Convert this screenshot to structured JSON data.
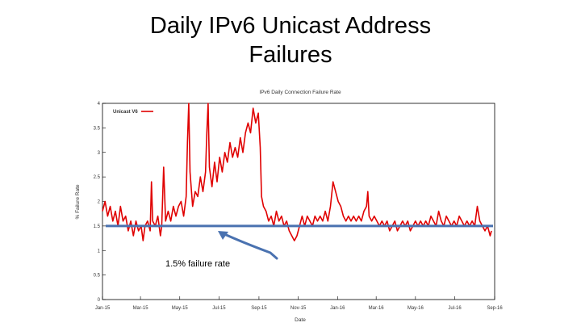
{
  "slide": {
    "title_line1": "Daily IPv6 Unicast Address",
    "title_line2": "Failures"
  },
  "colors": {
    "series": "#e00000",
    "reference_line": "#4a72b0",
    "annotation_arrow": "#4a72b0",
    "axis": "#000000"
  },
  "chart_data": {
    "type": "line",
    "title": "IPv6 Daily Connection Failure Rate",
    "xlabel": "Date",
    "ylabel": "% Failure Rate",
    "xlim": [
      "2015-01-01",
      "2016-09-01"
    ],
    "ylim": [
      0,
      4
    ],
    "y_ticks": [
      0,
      0.5,
      1,
      1.5,
      2,
      2.5,
      3,
      3.5,
      4
    ],
    "x_ticks": [
      {
        "date": "2015-01-01",
        "label": "Jan-15"
      },
      {
        "date": "2015-03-01",
        "label": "Mar-15"
      },
      {
        "date": "2015-05-01",
        "label": "May-15"
      },
      {
        "date": "2015-07-01",
        "label": "Jul-15"
      },
      {
        "date": "2015-09-01",
        "label": "Sep-15"
      },
      {
        "date": "2015-11-01",
        "label": "Nov-15"
      },
      {
        "date": "2016-01-01",
        "label": "Jan-16"
      },
      {
        "date": "2016-03-01",
        "label": "Mar-16"
      },
      {
        "date": "2016-05-01",
        "label": "May-16"
      },
      {
        "date": "2016-07-01",
        "label": "Jul-16"
      },
      {
        "date": "2016-09-01",
        "label": "Sep-16"
      }
    ],
    "legend": {
      "placement": "top-left",
      "entries": [
        "Unicast V6"
      ]
    },
    "grid": false,
    "series": [
      {
        "name": "Unicast V6",
        "points": [
          [
            "2015-01-01",
            1.8
          ],
          [
            "2015-01-05",
            2.0
          ],
          [
            "2015-01-09",
            1.7
          ],
          [
            "2015-01-13",
            1.9
          ],
          [
            "2015-01-17",
            1.6
          ],
          [
            "2015-01-21",
            1.8
          ],
          [
            "2015-01-25",
            1.5
          ],
          [
            "2015-01-29",
            1.9
          ],
          [
            "2015-02-02",
            1.6
          ],
          [
            "2015-02-06",
            1.7
          ],
          [
            "2015-02-10",
            1.4
          ],
          [
            "2015-02-14",
            1.6
          ],
          [
            "2015-02-18",
            1.3
          ],
          [
            "2015-02-22",
            1.6
          ],
          [
            "2015-02-26",
            1.4
          ],
          [
            "2015-03-02",
            1.5
          ],
          [
            "2015-03-05",
            1.2
          ],
          [
            "2015-03-08",
            1.5
          ],
          [
            "2015-03-12",
            1.6
          ],
          [
            "2015-03-16",
            1.4
          ],
          [
            "2015-03-18",
            2.4
          ],
          [
            "2015-03-20",
            1.6
          ],
          [
            "2015-03-24",
            1.5
          ],
          [
            "2015-03-28",
            1.7
          ],
          [
            "2015-04-01",
            1.3
          ],
          [
            "2015-04-03",
            1.5
          ],
          [
            "2015-04-06",
            2.7
          ],
          [
            "2015-04-09",
            1.6
          ],
          [
            "2015-04-13",
            1.8
          ],
          [
            "2015-04-17",
            1.6
          ],
          [
            "2015-04-21",
            1.9
          ],
          [
            "2015-04-25",
            1.7
          ],
          [
            "2015-04-29",
            1.9
          ],
          [
            "2015-05-03",
            2.0
          ],
          [
            "2015-05-07",
            1.7
          ],
          [
            "2015-05-11",
            2.1
          ],
          [
            "2015-05-13",
            3.2
          ],
          [
            "2015-05-15",
            4.0
          ],
          [
            "2015-05-17",
            2.6
          ],
          [
            "2015-05-21",
            1.9
          ],
          [
            "2015-05-25",
            2.2
          ],
          [
            "2015-05-29",
            2.1
          ],
          [
            "2015-06-02",
            2.5
          ],
          [
            "2015-06-06",
            2.2
          ],
          [
            "2015-06-10",
            2.6
          ],
          [
            "2015-06-12",
            3.4
          ],
          [
            "2015-06-14",
            4.0
          ],
          [
            "2015-06-16",
            2.7
          ],
          [
            "2015-06-20",
            2.3
          ],
          [
            "2015-06-24",
            2.8
          ],
          [
            "2015-06-28",
            2.4
          ],
          [
            "2015-07-02",
            2.9
          ],
          [
            "2015-07-06",
            2.6
          ],
          [
            "2015-07-10",
            3.0
          ],
          [
            "2015-07-14",
            2.8
          ],
          [
            "2015-07-18",
            3.2
          ],
          [
            "2015-07-22",
            2.9
          ],
          [
            "2015-07-26",
            3.1
          ],
          [
            "2015-07-30",
            2.9
          ],
          [
            "2015-08-03",
            3.3
          ],
          [
            "2015-08-07",
            3.0
          ],
          [
            "2015-08-11",
            3.4
          ],
          [
            "2015-08-15",
            3.6
          ],
          [
            "2015-08-19",
            3.4
          ],
          [
            "2015-08-23",
            3.9
          ],
          [
            "2015-08-27",
            3.6
          ],
          [
            "2015-08-31",
            3.8
          ],
          [
            "2015-09-03",
            3.1
          ],
          [
            "2015-09-05",
            2.1
          ],
          [
            "2015-09-08",
            1.9
          ],
          [
            "2015-09-12",
            1.8
          ],
          [
            "2015-09-16",
            1.6
          ],
          [
            "2015-09-20",
            1.7
          ],
          [
            "2015-09-24",
            1.5
          ],
          [
            "2015-09-28",
            1.8
          ],
          [
            "2015-10-02",
            1.6
          ],
          [
            "2015-10-06",
            1.7
          ],
          [
            "2015-10-10",
            1.5
          ],
          [
            "2015-10-14",
            1.6
          ],
          [
            "2015-10-18",
            1.4
          ],
          [
            "2015-10-22",
            1.3
          ],
          [
            "2015-10-26",
            1.2
          ],
          [
            "2015-10-30",
            1.3
          ],
          [
            "2015-11-03",
            1.5
          ],
          [
            "2015-11-07",
            1.7
          ],
          [
            "2015-11-11",
            1.5
          ],
          [
            "2015-11-15",
            1.7
          ],
          [
            "2015-11-19",
            1.6
          ],
          [
            "2015-11-23",
            1.5
          ],
          [
            "2015-11-27",
            1.7
          ],
          [
            "2015-12-01",
            1.6
          ],
          [
            "2015-12-05",
            1.7
          ],
          [
            "2015-12-09",
            1.6
          ],
          [
            "2015-12-13",
            1.8
          ],
          [
            "2015-12-17",
            1.6
          ],
          [
            "2015-12-21",
            1.9
          ],
          [
            "2015-12-25",
            2.4
          ],
          [
            "2015-12-29",
            2.2
          ],
          [
            "2016-01-02",
            2.0
          ],
          [
            "2016-01-06",
            1.9
          ],
          [
            "2016-01-10",
            1.7
          ],
          [
            "2016-01-14",
            1.6
          ],
          [
            "2016-01-18",
            1.7
          ],
          [
            "2016-01-22",
            1.6
          ],
          [
            "2016-01-26",
            1.7
          ],
          [
            "2016-01-30",
            1.6
          ],
          [
            "2016-02-03",
            1.7
          ],
          [
            "2016-02-07",
            1.6
          ],
          [
            "2016-02-11",
            1.8
          ],
          [
            "2016-02-15",
            1.9
          ],
          [
            "2016-02-17",
            2.2
          ],
          [
            "2016-02-19",
            1.7
          ],
          [
            "2016-02-23",
            1.6
          ],
          [
            "2016-02-27",
            1.7
          ],
          [
            "2016-03-02",
            1.6
          ],
          [
            "2016-03-06",
            1.5
          ],
          [
            "2016-03-10",
            1.6
          ],
          [
            "2016-03-14",
            1.5
          ],
          [
            "2016-03-18",
            1.6
          ],
          [
            "2016-03-22",
            1.4
          ],
          [
            "2016-03-26",
            1.5
          ],
          [
            "2016-03-30",
            1.6
          ],
          [
            "2016-04-03",
            1.4
          ],
          [
            "2016-04-07",
            1.5
          ],
          [
            "2016-04-11",
            1.6
          ],
          [
            "2016-04-15",
            1.5
          ],
          [
            "2016-04-19",
            1.6
          ],
          [
            "2016-04-23",
            1.4
          ],
          [
            "2016-04-27",
            1.5
          ],
          [
            "2016-05-01",
            1.6
          ],
          [
            "2016-05-05",
            1.5
          ],
          [
            "2016-05-09",
            1.6
          ],
          [
            "2016-05-13",
            1.5
          ],
          [
            "2016-05-17",
            1.6
          ],
          [
            "2016-05-21",
            1.5
          ],
          [
            "2016-05-25",
            1.7
          ],
          [
            "2016-05-29",
            1.6
          ],
          [
            "2016-06-02",
            1.5
          ],
          [
            "2016-06-06",
            1.8
          ],
          [
            "2016-06-10",
            1.6
          ],
          [
            "2016-06-14",
            1.5
          ],
          [
            "2016-06-18",
            1.7
          ],
          [
            "2016-06-22",
            1.6
          ],
          [
            "2016-06-26",
            1.5
          ],
          [
            "2016-06-30",
            1.6
          ],
          [
            "2016-07-04",
            1.5
          ],
          [
            "2016-07-08",
            1.7
          ],
          [
            "2016-07-12",
            1.6
          ],
          [
            "2016-07-16",
            1.5
          ],
          [
            "2016-07-20",
            1.6
          ],
          [
            "2016-07-24",
            1.5
          ],
          [
            "2016-07-28",
            1.6
          ],
          [
            "2016-08-01",
            1.5
          ],
          [
            "2016-08-05",
            1.9
          ],
          [
            "2016-08-09",
            1.6
          ],
          [
            "2016-08-13",
            1.5
          ],
          [
            "2016-08-17",
            1.4
          ],
          [
            "2016-08-21",
            1.5
          ],
          [
            "2016-08-25",
            1.3
          ],
          [
            "2016-08-27",
            1.4
          ]
        ]
      }
    ],
    "reference_line": {
      "y": 1.5
    },
    "annotation": {
      "text": "1.5% failure rate"
    }
  }
}
